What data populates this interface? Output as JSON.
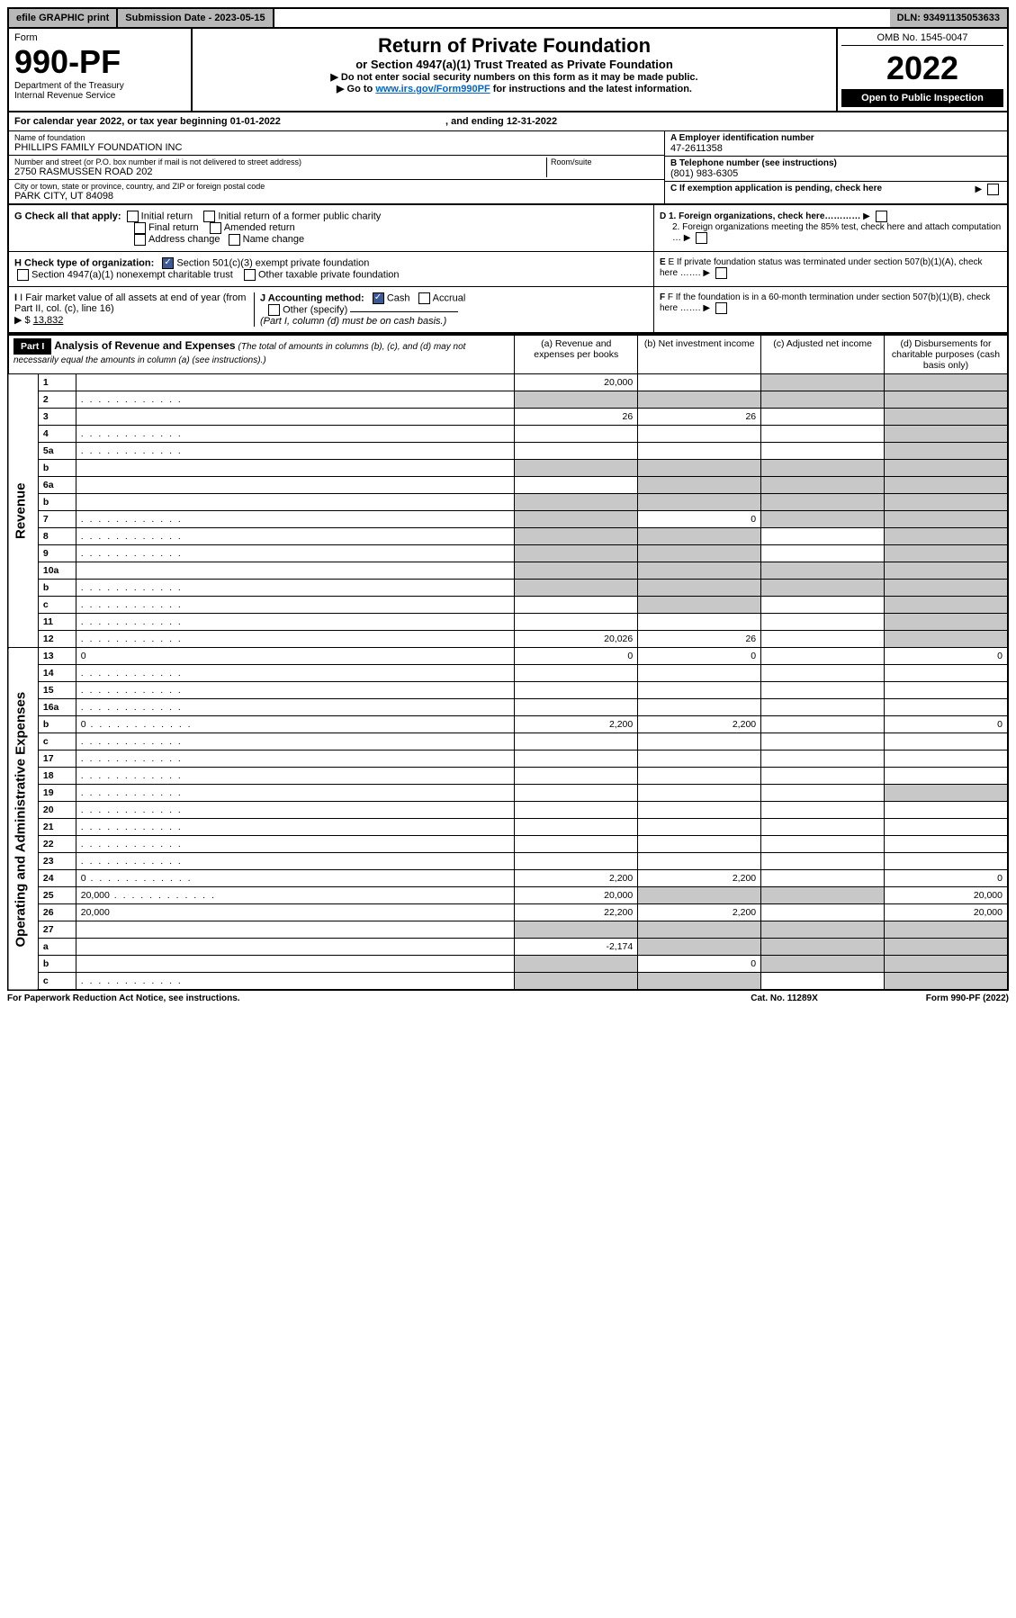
{
  "topbar": {
    "efile": "efile GRAPHIC print",
    "submission_label": "Submission Date - 2023-05-15",
    "dln": "DLN: 93491135053633"
  },
  "header": {
    "form_word": "Form",
    "form_number": "990-PF",
    "dept": "Department of the Treasury",
    "irs": "Internal Revenue Service",
    "title": "Return of Private Foundation",
    "subtitle": "or Section 4947(a)(1) Trust Treated as Private Foundation",
    "bullet1": "▶ Do not enter social security numbers on this form as it may be made public.",
    "bullet2_prefix": "▶ Go to ",
    "bullet2_link": "www.irs.gov/Form990PF",
    "bullet2_suffix": " for instructions and the latest information.",
    "omb": "OMB No. 1545-0047",
    "year": "2022",
    "open_public": "Open to Public Inspection"
  },
  "cal_year": {
    "line": "For calendar year 2022, or tax year beginning 01-01-2022",
    "ending": ", and ending 12-31-2022"
  },
  "entity": {
    "name_label": "Name of foundation",
    "name": "PHILLIPS FAMILY FOUNDATION INC",
    "addr_label": "Number and street (or P.O. box number if mail is not delivered to street address)",
    "addr": "2750 RASMUSSEN ROAD 202",
    "room_label": "Room/suite",
    "city_label": "City or town, state or province, country, and ZIP or foreign postal code",
    "city": "PARK CITY, UT  84098",
    "a_label": "A Employer identification number",
    "a_val": "47-2611358",
    "b_label": "B Telephone number (see instructions)",
    "b_val": "(801) 983-6305",
    "c_label": "C If exemption application is pending, check here"
  },
  "g": {
    "label": "G Check all that apply:",
    "initial": "Initial return",
    "initial_pub": "Initial return of a former public charity",
    "final": "Final return",
    "amended": "Amended return",
    "addr_change": "Address change",
    "name_change": "Name change"
  },
  "h": {
    "label": "H Check type of organization:",
    "opt1": "Section 501(c)(3) exempt private foundation",
    "opt2": "Section 4947(a)(1) nonexempt charitable trust",
    "opt3": "Other taxable private foundation"
  },
  "i": {
    "label": "I Fair market value of all assets at end of year (from Part II, col. (c), line 16)",
    "arrow": "▶ $",
    "val": "13,832"
  },
  "j": {
    "label": "J Accounting method:",
    "cash": "Cash",
    "accrual": "Accrual",
    "other": "Other (specify)",
    "note": "(Part I, column (d) must be on cash basis.)"
  },
  "d": {
    "d1": "D 1. Foreign organizations, check here…………",
    "d2": "2. Foreign organizations meeting the 85% test, check here and attach computation …"
  },
  "e": {
    "label": "E  If private foundation status was terminated under section 507(b)(1)(A), check here ……."
  },
  "f": {
    "label": "F  If the foundation is in a 60-month termination under section 507(b)(1)(B), check here ……."
  },
  "part1": {
    "tag": "Part I",
    "title": "Analysis of Revenue and Expenses",
    "note": "(The total of amounts in columns (b), (c), and (d) may not necessarily equal the amounts in column (a) (see instructions).)",
    "col_a": "(a)    Revenue and expenses per books",
    "col_b": "(b)    Net investment income",
    "col_c": "(c)    Adjusted net income",
    "col_d": "(d)    Disbursements for charitable purposes (cash basis only)"
  },
  "sections": {
    "revenue": "Revenue",
    "operating": "Operating and Administrative Expenses"
  },
  "rows": [
    {
      "n": "1",
      "d": "",
      "a": "20,000",
      "b": "",
      "c": "",
      "grey": [
        "c",
        "d"
      ]
    },
    {
      "n": "2",
      "d": "",
      "dots": true,
      "a": "",
      "b": "",
      "c": "",
      "grey": [
        "a",
        "b",
        "c",
        "d"
      ]
    },
    {
      "n": "3",
      "d": "",
      "a": "26",
      "b": "26",
      "c": "",
      "grey": [
        "d"
      ]
    },
    {
      "n": "4",
      "d": "",
      "dots": true,
      "a": "",
      "b": "",
      "c": "",
      "grey": [
        "d"
      ]
    },
    {
      "n": "5a",
      "d": "",
      "dots": true,
      "a": "",
      "b": "",
      "c": "",
      "grey": [
        "d"
      ]
    },
    {
      "n": "b",
      "d": "",
      "a": "",
      "b": "",
      "c": "",
      "grey": [
        "a",
        "b",
        "c",
        "d"
      ]
    },
    {
      "n": "6a",
      "d": "",
      "a": "",
      "b": "",
      "c": "",
      "grey": [
        "b",
        "c",
        "d"
      ]
    },
    {
      "n": "b",
      "d": "",
      "a": "",
      "b": "",
      "c": "",
      "grey": [
        "a",
        "b",
        "c",
        "d"
      ]
    },
    {
      "n": "7",
      "d": "",
      "dots": true,
      "a": "",
      "b": "0",
      "c": "",
      "grey": [
        "a",
        "c",
        "d"
      ]
    },
    {
      "n": "8",
      "d": "",
      "dots": true,
      "a": "",
      "b": "",
      "c": "",
      "grey": [
        "a",
        "b",
        "d"
      ]
    },
    {
      "n": "9",
      "d": "",
      "dots": true,
      "a": "",
      "b": "",
      "c": "",
      "grey": [
        "a",
        "b",
        "d"
      ]
    },
    {
      "n": "10a",
      "d": "",
      "a": "",
      "b": "",
      "c": "",
      "grey": [
        "a",
        "b",
        "c",
        "d"
      ]
    },
    {
      "n": "b",
      "d": "",
      "dots": true,
      "a": "",
      "b": "",
      "c": "",
      "grey": [
        "a",
        "b",
        "c",
        "d"
      ]
    },
    {
      "n": "c",
      "d": "",
      "dots": true,
      "a": "",
      "b": "",
      "c": "",
      "grey": [
        "b",
        "d"
      ]
    },
    {
      "n": "11",
      "d": "",
      "dots": true,
      "a": "",
      "b": "",
      "c": "",
      "grey": [
        "d"
      ]
    },
    {
      "n": "12",
      "d": "",
      "dots": true,
      "a": "20,026",
      "b": "26",
      "c": "",
      "grey": [
        "d"
      ]
    }
  ],
  "exp_rows": [
    {
      "n": "13",
      "d": "0",
      "a": "0",
      "b": "0",
      "c": ""
    },
    {
      "n": "14",
      "d": "",
      "dots": true,
      "a": "",
      "b": "",
      "c": ""
    },
    {
      "n": "15",
      "d": "",
      "dots": true,
      "a": "",
      "b": "",
      "c": ""
    },
    {
      "n": "16a",
      "d": "",
      "dots": true,
      "a": "",
      "b": "",
      "c": ""
    },
    {
      "n": "b",
      "d": "0",
      "dots": true,
      "a": "2,200",
      "b": "2,200",
      "c": ""
    },
    {
      "n": "c",
      "d": "",
      "dots": true,
      "a": "",
      "b": "",
      "c": ""
    },
    {
      "n": "17",
      "d": "",
      "dots": true,
      "a": "",
      "b": "",
      "c": ""
    },
    {
      "n": "18",
      "d": "",
      "dots": true,
      "a": "",
      "b": "",
      "c": ""
    },
    {
      "n": "19",
      "d": "",
      "dots": true,
      "a": "",
      "b": "",
      "c": "",
      "grey": [
        "d"
      ]
    },
    {
      "n": "20",
      "d": "",
      "dots": true,
      "a": "",
      "b": "",
      "c": ""
    },
    {
      "n": "21",
      "d": "",
      "dots": true,
      "a": "",
      "b": "",
      "c": ""
    },
    {
      "n": "22",
      "d": "",
      "dots": true,
      "a": "",
      "b": "",
      "c": ""
    },
    {
      "n": "23",
      "d": "",
      "dots": true,
      "a": "",
      "b": "",
      "c": ""
    },
    {
      "n": "24",
      "d": "0",
      "dots": true,
      "a": "2,200",
      "b": "2,200",
      "c": ""
    },
    {
      "n": "25",
      "d": "20,000",
      "dots": true,
      "a": "20,000",
      "b": "",
      "c": "",
      "grey": [
        "b",
        "c"
      ]
    },
    {
      "n": "26",
      "d": "20,000",
      "a": "22,200",
      "b": "2,200",
      "c": ""
    },
    {
      "n": "27",
      "d": "",
      "a": "",
      "b": "",
      "c": "",
      "grey": [
        "a",
        "b",
        "c",
        "d"
      ]
    },
    {
      "n": "a",
      "d": "",
      "a": "-2,174",
      "b": "",
      "c": "",
      "grey": [
        "b",
        "c",
        "d"
      ]
    },
    {
      "n": "b",
      "d": "",
      "a": "",
      "b": "0",
      "c": "",
      "grey": [
        "a",
        "c",
        "d"
      ]
    },
    {
      "n": "c",
      "d": "",
      "dots": true,
      "a": "",
      "b": "",
      "c": "",
      "grey": [
        "a",
        "b",
        "d"
      ]
    }
  ],
  "footer": {
    "left": "For Paperwork Reduction Act Notice, see instructions.",
    "mid": "Cat. No. 11289X",
    "right": "Form 990-PF (2022)"
  }
}
